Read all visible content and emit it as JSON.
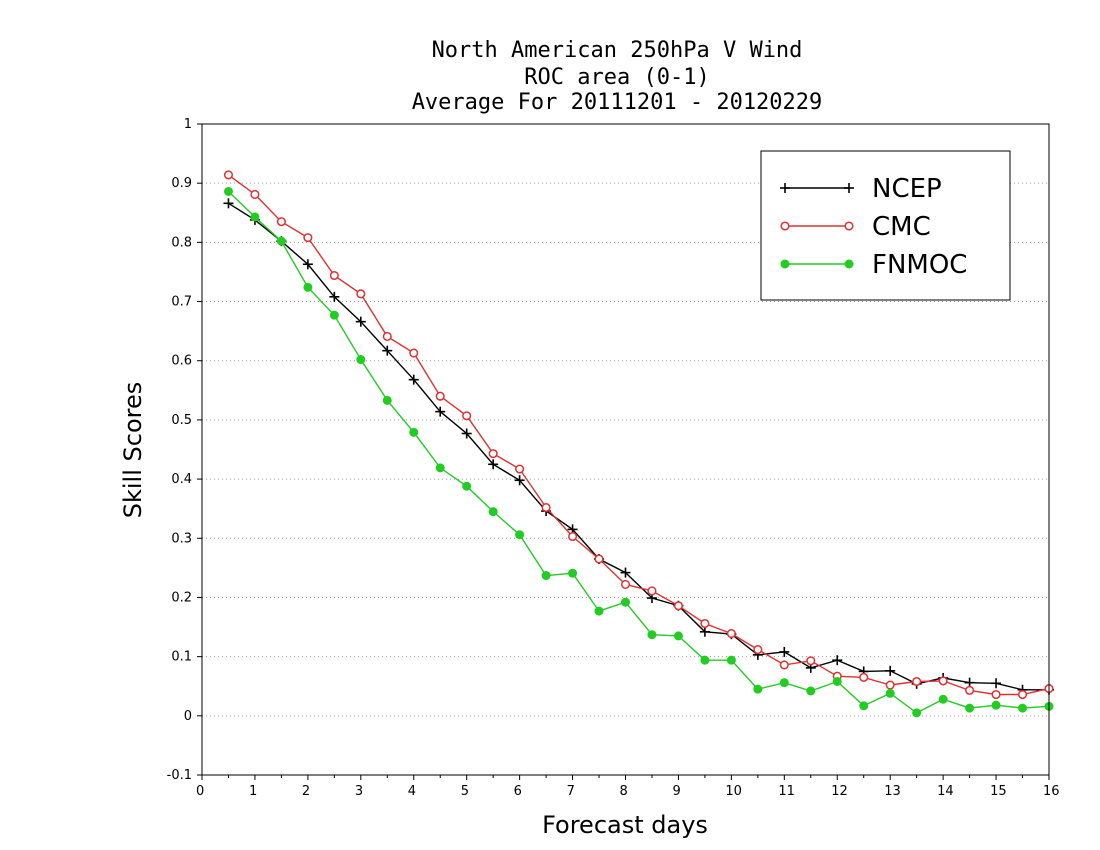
{
  "chart_data": {
    "type": "line",
    "title": [
      "North American 250hPa V Wind",
      "ROC area (0-1)",
      "Average For 20111201 - 20120229"
    ],
    "xlabel": "Forecast days",
    "ylabel": "Skill Scores",
    "xlim": [
      0,
      16
    ],
    "ylim": [
      -0.1,
      1
    ],
    "x_ticks": [
      0,
      1,
      2,
      3,
      4,
      5,
      6,
      7,
      8,
      9,
      10,
      11,
      12,
      13,
      14,
      15,
      16
    ],
    "y_ticks": [
      -0.1,
      0,
      0.1,
      0.2,
      0.3,
      0.4,
      0.5,
      0.6,
      0.7,
      0.8,
      0.9,
      1
    ],
    "y_tick_labels": [
      "-0.1",
      "0",
      "0.1",
      "0.2",
      "0.3",
      "0.4",
      "0.5",
      "0.6",
      "0.7",
      "0.8",
      "0.9",
      "1"
    ],
    "grid": "horizontal dotted",
    "legend_position": "top-right",
    "x": [
      0.5,
      1,
      1.5,
      2,
      2.5,
      3,
      3.5,
      4,
      4.5,
      5,
      5.5,
      6,
      6.5,
      7,
      7.5,
      8,
      8.5,
      9,
      9.5,
      10,
      10.5,
      11,
      11.5,
      12,
      12.5,
      13,
      13.5,
      14,
      14.5,
      15,
      15.5,
      16
    ],
    "series": [
      {
        "name": "NCEP",
        "color": "#000000",
        "marker": "plus",
        "values": [
          0.866,
          0.838,
          0.802,
          0.763,
          0.708,
          0.666,
          0.617,
          0.568,
          0.514,
          0.477,
          0.425,
          0.398,
          0.346,
          0.315,
          0.265,
          0.242,
          0.199,
          0.186,
          0.142,
          0.138,
          0.103,
          0.108,
          0.081,
          0.094,
          0.075,
          0.076,
          0.054,
          0.064,
          0.056,
          0.055,
          0.044,
          0.044
        ]
      },
      {
        "name": "CMC",
        "color": "#e03030",
        "marker": "open-circle",
        "values": [
          0.914,
          0.881,
          0.835,
          0.808,
          0.744,
          0.713,
          0.641,
          0.613,
          0.54,
          0.507,
          0.443,
          0.417,
          0.352,
          0.303,
          0.265,
          0.222,
          0.211,
          0.186,
          0.156,
          0.139,
          0.112,
          0.086,
          0.093,
          0.067,
          0.065,
          0.052,
          0.058,
          0.059,
          0.043,
          0.036,
          0.036,
          0.046
        ]
      },
      {
        "name": "FNMOC",
        "color": "#22cc22",
        "marker": "filled-circle",
        "values": [
          0.886,
          0.843,
          0.802,
          0.724,
          0.677,
          0.602,
          0.533,
          0.479,
          0.419,
          0.388,
          0.345,
          0.306,
          0.237,
          0.241,
          0.177,
          0.192,
          0.137,
          0.135,
          0.094,
          0.094,
          0.045,
          0.056,
          0.042,
          0.058,
          0.017,
          0.038,
          0.005,
          0.028,
          0.013,
          0.018,
          0.013,
          0.016
        ]
      }
    ]
  }
}
